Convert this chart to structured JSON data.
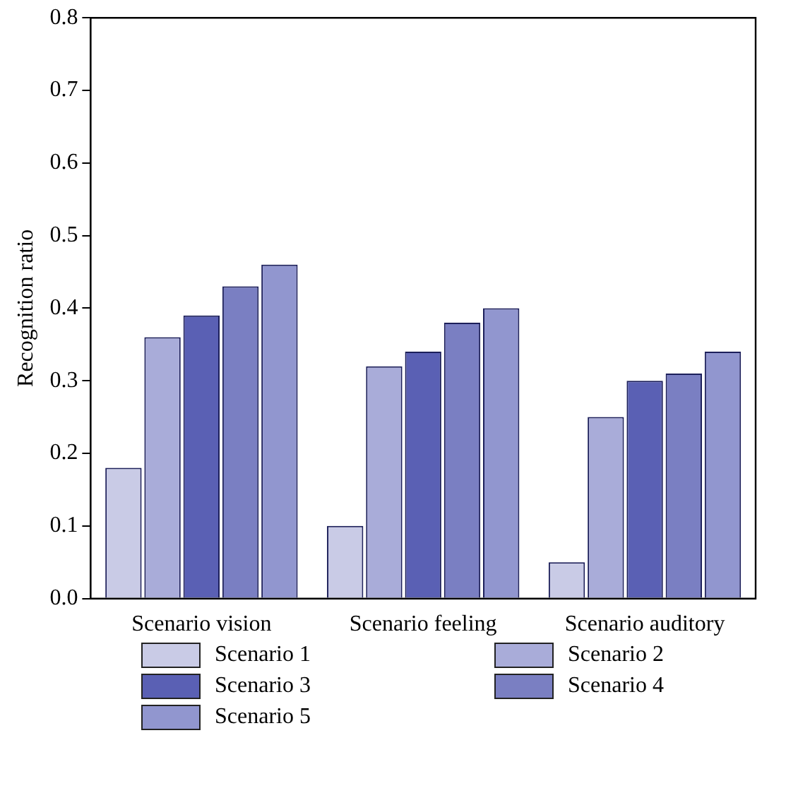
{
  "chart_data": {
    "type": "bar",
    "ylabel": "Recognition ratio",
    "categories": [
      "Scenario vision",
      "Scenario feeling",
      "Scenario auditory"
    ],
    "series": [
      {
        "name": "Scenario 1",
        "color": "#c9cbe6",
        "values": [
          0.18,
          0.1,
          0.05
        ]
      },
      {
        "name": "Scenario 2",
        "color": "#a9acd9",
        "values": [
          0.36,
          0.32,
          0.25
        ]
      },
      {
        "name": "Scenario 3",
        "color": "#5a60b4",
        "values": [
          0.39,
          0.34,
          0.3
        ]
      },
      {
        "name": "Scenario 4",
        "color": "#7a7fc2",
        "values": [
          0.43,
          0.38,
          0.31
        ]
      },
      {
        "name": "Scenario 5",
        "color": "#9196cf",
        "values": [
          0.46,
          0.4,
          0.34
        ]
      }
    ],
    "ylim": [
      0,
      0.8
    ],
    "yticks": [
      {
        "value": 0,
        "label": "0.0"
      },
      {
        "value": 0.1,
        "label": "0.1"
      },
      {
        "value": 0.2,
        "label": "0.2"
      },
      {
        "value": 0.3,
        "label": "0.3"
      },
      {
        "value": 0.4,
        "label": "0.4"
      },
      {
        "value": 0.5,
        "label": "0.5"
      },
      {
        "value": 0.6,
        "label": "0.6"
      },
      {
        "value": 0.7,
        "label": "0.7"
      },
      {
        "value": 0.8,
        "label": "0.8"
      }
    ],
    "grid": false,
    "legend": "bottom"
  }
}
